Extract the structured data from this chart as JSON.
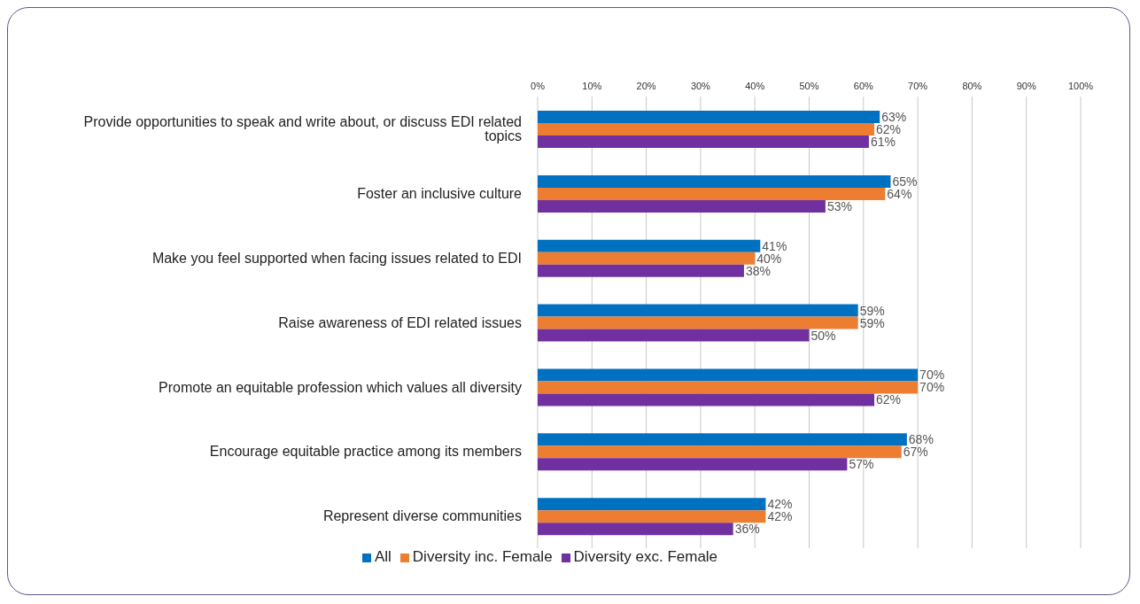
{
  "chart_data": {
    "type": "bar",
    "orientation": "horizontal",
    "categories": [
      "Provide opportunities to speak and write about, or discuss EDI related topics",
      "Foster an inclusive culture",
      "Make you feel supported when facing issues related to EDI",
      "Raise awareness of EDI related issues",
      "Promote an equitable profession which values all diversity",
      "Encourage equitable practice among its members",
      "Represent diverse communities"
    ],
    "series": [
      {
        "name": "All",
        "color": "#0070c0",
        "values": [
          63,
          65,
          41,
          59,
          70,
          68,
          42
        ],
        "value_labels": [
          "63%",
          "65%",
          "41%",
          "59%",
          "70%",
          "68%",
          "42%"
        ]
      },
      {
        "name": "Diversity inc. Female",
        "color": "#ed7d31",
        "values": [
          62,
          64,
          40,
          59,
          70,
          67,
          42
        ],
        "value_labels": [
          "62%",
          "64%",
          "40%",
          "59%",
          "70%",
          "67%",
          "42%"
        ]
      },
      {
        "name": "Diversity exc. Female",
        "color": "#7030a0",
        "values": [
          61,
          53,
          38,
          50,
          62,
          57,
          36
        ],
        "value_labels": [
          "61%",
          "53%",
          "38%",
          "50%",
          "62%",
          "57%",
          "36%"
        ]
      }
    ],
    "xlim": [
      0,
      100
    ],
    "xticks": [
      {
        "value": 0,
        "label": "0%"
      },
      {
        "value": 10,
        "label": "10%"
      },
      {
        "value": 20,
        "label": "20%"
      },
      {
        "value": 30,
        "label": "30%"
      },
      {
        "value": 40,
        "label": "40%"
      },
      {
        "value": 50,
        "label": "50%"
      },
      {
        "value": 60,
        "label": "60%"
      },
      {
        "value": 70,
        "label": "70%"
      },
      {
        "value": 80,
        "label": "80%"
      },
      {
        "value": 90,
        "label": "90%"
      },
      {
        "value": 100,
        "label": "100%"
      }
    ],
    "grid": "x",
    "legend": "bottom"
  }
}
